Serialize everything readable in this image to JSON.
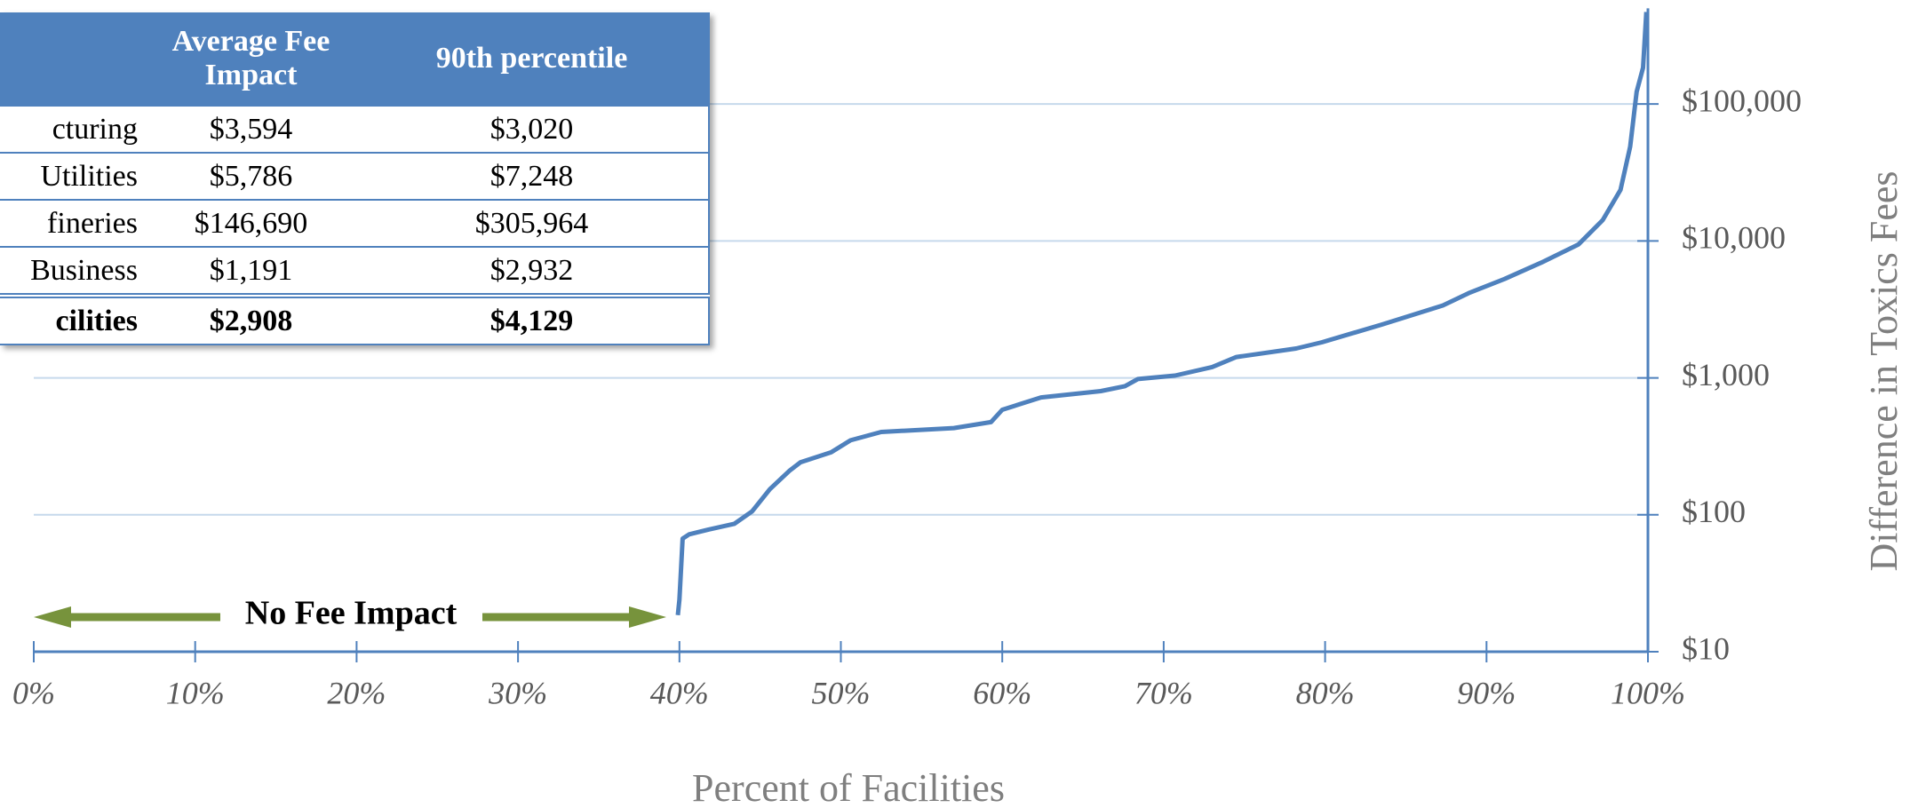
{
  "chart_data": {
    "type": "line",
    "xlabel": "Percent of Facilities",
    "ylabel": "Difference in Toxics Fees",
    "annotation": "No Fee Impact",
    "log_y": true,
    "grid": true,
    "x": [
      39.9,
      40.0,
      40.2,
      40.6,
      41.8,
      43.4,
      44.5,
      45.6,
      46.8,
      47.5,
      49.4,
      50.6,
      52.5,
      57.0,
      59.3,
      60.0,
      62.4,
      66.1,
      67.6,
      68.4,
      70.7,
      73.0,
      74.5,
      78.2,
      79.8,
      83.5,
      87.3,
      88.9,
      91.1,
      93.4,
      95.7,
      97.2,
      98.3,
      98.9,
      99.3,
      99.7,
      99.9
    ],
    "series": [
      {
        "name": "Difference in Toxics Fees",
        "color": "#4f81bd",
        "values": [
          18.5,
          24,
          67,
          72,
          78,
          86,
          106,
          154,
          209,
          242,
          286,
          350,
          403,
          430,
          475,
          585,
          720,
          800,
          870,
          980,
          1040,
          1200,
          1420,
          1640,
          1820,
          2450,
          3380,
          4160,
          5270,
          6960,
          9440,
          14200,
          23600,
          48800,
          123000,
          184000,
          470000
        ]
      }
    ],
    "xlim": [
      0,
      100
    ],
    "xticks": [
      {
        "value": 0,
        "label": "0%"
      },
      {
        "value": 10,
        "label": "10%"
      },
      {
        "value": 20,
        "label": "20%"
      },
      {
        "value": 30,
        "label": "30%"
      },
      {
        "value": 40,
        "label": "40%"
      },
      {
        "value": 50,
        "label": "50%"
      },
      {
        "value": 60,
        "label": "60%"
      },
      {
        "value": 70,
        "label": "70%"
      },
      {
        "value": 80,
        "label": "80%"
      },
      {
        "value": 90,
        "label": "90%"
      },
      {
        "value": 100,
        "label": "100%"
      }
    ],
    "ylim": [
      10,
      500000
    ],
    "yticks": [
      {
        "value": 10,
        "label": "$10"
      },
      {
        "value": 100,
        "label": "$100"
      },
      {
        "value": 1000,
        "label": "$1,000"
      },
      {
        "value": 10000,
        "label": "$10,000"
      },
      {
        "value": 100000,
        "label": "$100,000"
      }
    ]
  },
  "table": {
    "header": [
      "",
      "Average Fee Impact",
      "90th percentile"
    ],
    "rows": [
      [
        "cturing",
        "$3,594",
        "$3,020"
      ],
      [
        "Utilities",
        "$5,786",
        "$7,248"
      ],
      [
        "fineries",
        "$146,690",
        "$305,964"
      ],
      [
        "Business",
        "$1,191",
        "$2,932"
      ],
      [
        "cilities",
        "$2,908",
        "$4,129"
      ]
    ]
  }
}
